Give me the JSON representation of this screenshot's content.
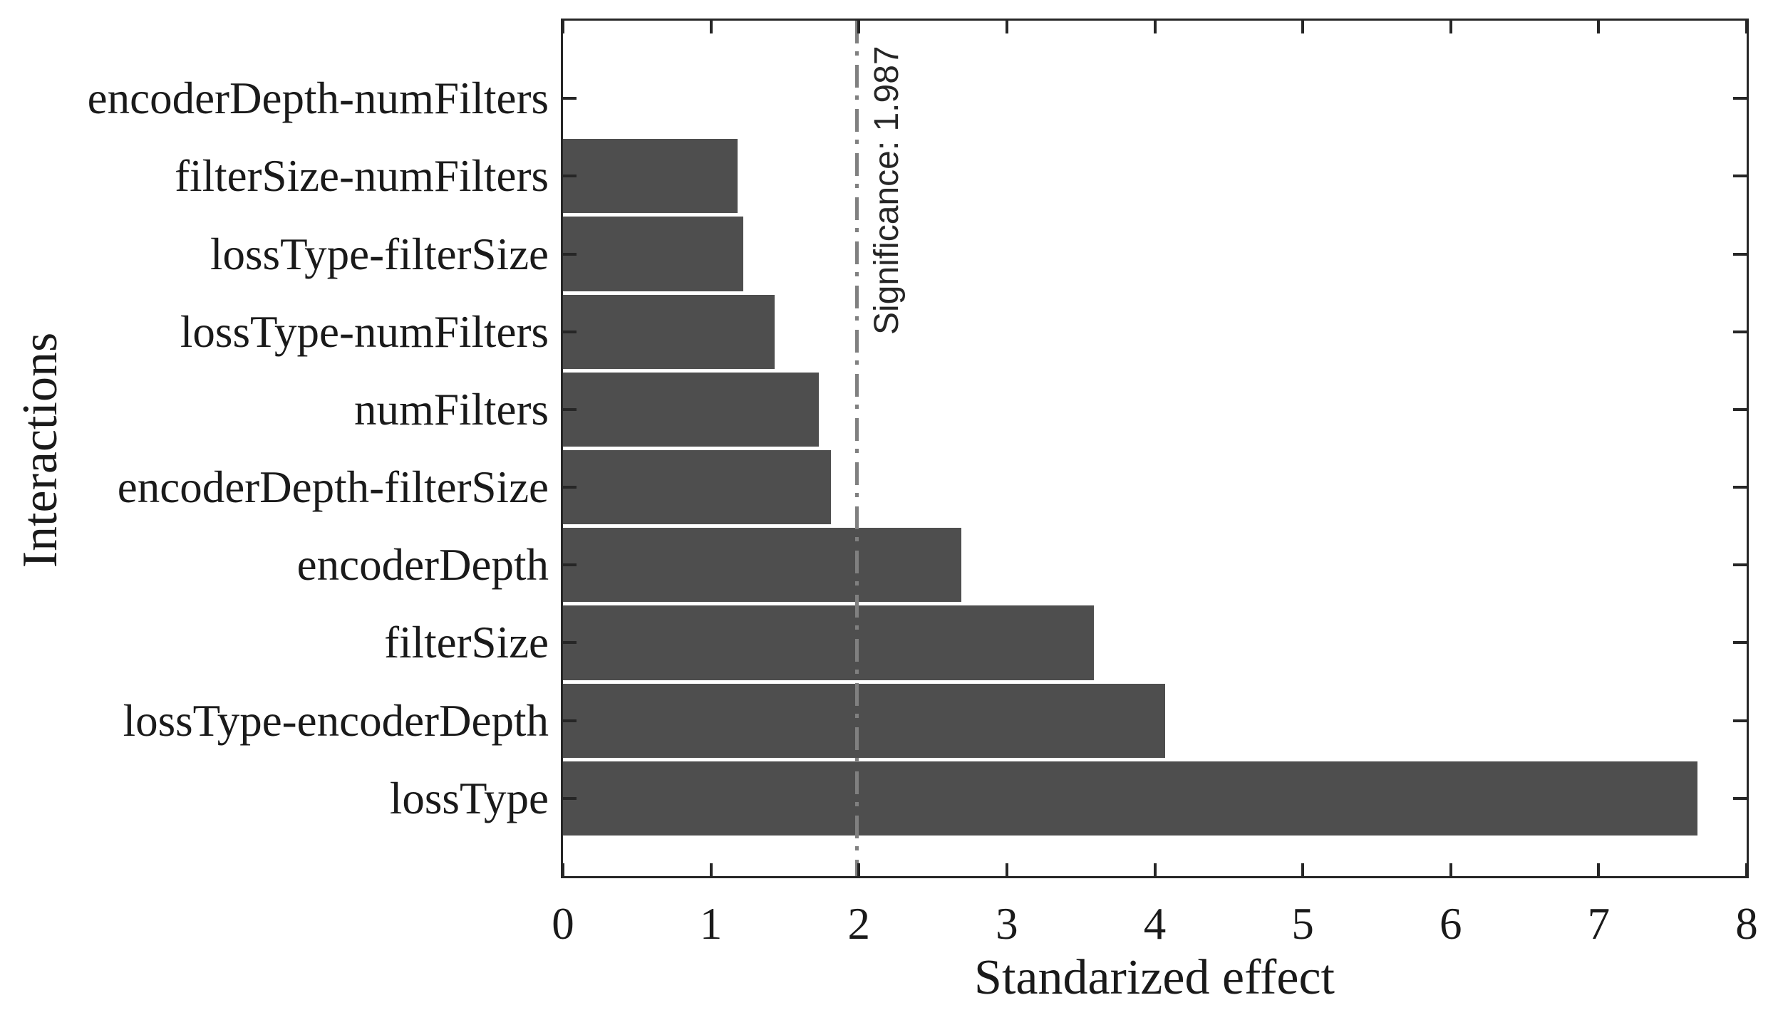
{
  "chart_data": {
    "type": "bar",
    "orientation": "horizontal",
    "title": "",
    "xlabel": "Standarized effect",
    "ylabel": "Interactions",
    "categories": [
      "encoderDepth-numFilters",
      "filterSize-numFilters",
      "lossType-filterSize",
      "lossType-numFilters",
      "numFilters",
      "encoderDepth-filterSize",
      "encoderDepth",
      "filterSize",
      "lossType-encoderDepth",
      "lossType"
    ],
    "values": [
      0,
      1.18,
      1.22,
      1.43,
      1.73,
      1.81,
      2.69,
      3.59,
      4.07,
      7.67
    ],
    "xlim": [
      0,
      8
    ],
    "xticks": [
      0,
      1,
      2,
      3,
      4,
      5,
      6,
      7,
      8
    ],
    "grid": false,
    "bar_color": "#4e4e4e",
    "axis_color": "#262626",
    "text_color": "#1a1a1a",
    "reference_line": {
      "value": 1.987,
      "label": "Significance: 1.987",
      "style": "dash-dot",
      "color": "#808080"
    }
  }
}
